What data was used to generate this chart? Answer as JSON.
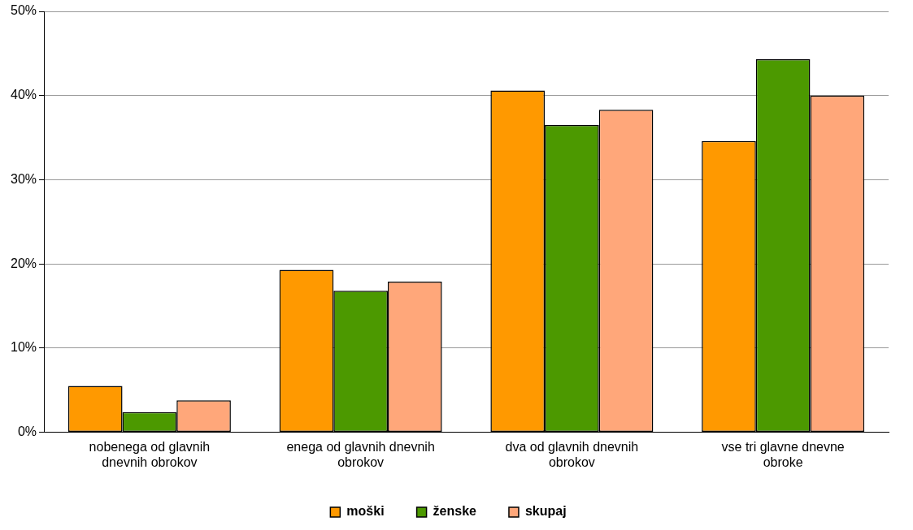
{
  "chart_data": {
    "type": "bar",
    "categories": [
      "nobenega od glavnih dnevnih obrokov",
      "enega od glavnih dnevnih obrokov",
      "dva od glavnih dnevnih obrokov",
      "vse tri glavne dnevne obroke"
    ],
    "series": [
      {
        "name": "moški",
        "color": "#ff9900",
        "values": [
          5.5,
          19.3,
          40.6,
          34.6
        ]
      },
      {
        "name": "ženske",
        "color": "#4c9900",
        "values": [
          2.4,
          16.8,
          36.5,
          44.3
        ]
      },
      {
        "name": "skupaj",
        "color": "#ffa77a",
        "values": [
          3.8,
          17.9,
          38.3,
          40.0
        ]
      }
    ],
    "ylim": [
      0,
      50
    ],
    "yticks": [
      {
        "value": 0,
        "label": "0%"
      },
      {
        "value": 10,
        "label": "10%"
      },
      {
        "value": 20,
        "label": "20%"
      },
      {
        "value": 30,
        "label": "30%"
      },
      {
        "value": 40,
        "label": "40%"
      },
      {
        "value": 50,
        "label": "50%"
      }
    ],
    "grid": "y",
    "legend": "bottom"
  }
}
